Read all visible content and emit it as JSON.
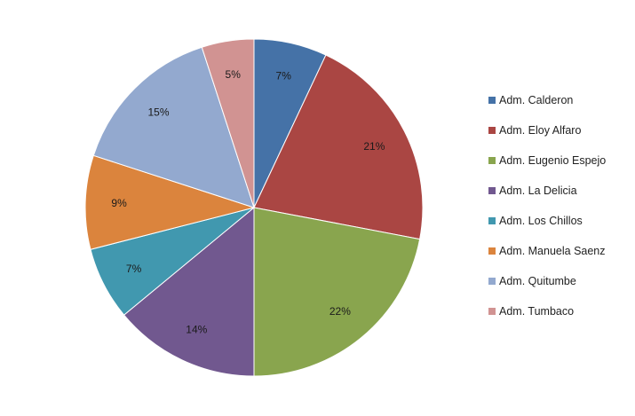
{
  "chart_data": {
    "type": "pie",
    "title": "",
    "categories": [
      "Adm. Calderon",
      "Adm. Eloy Alfaro",
      "Adm. Eugenio Espejo",
      "Adm. La Delicia",
      "Adm. Los Chillos",
      "Adm. Manuela Saenz",
      "Adm. Quitumbe",
      "Adm. Tumbaco"
    ],
    "values": [
      7,
      21,
      22,
      14,
      7,
      9,
      15,
      5
    ],
    "labels": [
      "7%",
      "21%",
      "22%",
      "14%",
      "7%",
      "9%",
      "15%",
      "5%"
    ],
    "colors": [
      "#4572A7",
      "#AA4643",
      "#89A54E",
      "#71588F",
      "#4198AF",
      "#DB843D",
      "#93A9CF",
      "#D19392"
    ],
    "legend_position": "right",
    "start_angle": "12 o'clock, clockwise"
  }
}
